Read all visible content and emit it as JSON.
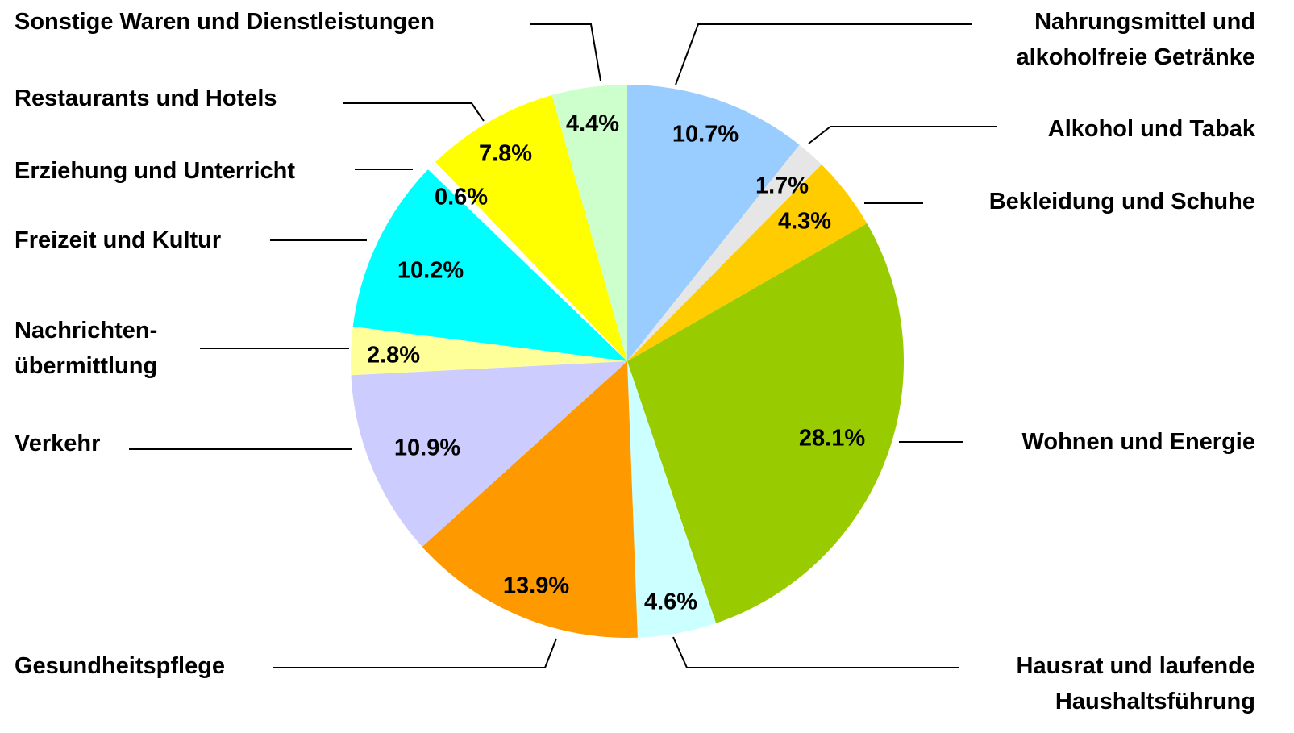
{
  "chart_data": {
    "type": "pie",
    "categories": [
      "Nahrungsmittel und\nalkoholfreie Getränke",
      "Alkohol und Tabak",
      "Bekleidung und Schuhe",
      "Wohnen und Energie",
      "Hausrat und laufende\nHaushaltsführung",
      "Gesundheitspflege",
      "Verkehr",
      "Nachrichten-\nübermittlung",
      "Freizeit und Kultur",
      "Erziehung und Unterricht",
      "Restaurants und Hotels",
      "Sonstige Waren und Dienstleistungen"
    ],
    "values": [
      10.7,
      1.7,
      4.3,
      28.1,
      4.6,
      13.9,
      10.9,
      2.8,
      10.2,
      0.6,
      7.8,
      4.4
    ],
    "value_labels": [
      "10.7%",
      "1.7%",
      "4.3%",
      "28.1%",
      "4.6%",
      "13.9%",
      "10.9%",
      "2.8%",
      "10.2%",
      "0.6%",
      "7.8%",
      "4.4%"
    ],
    "colors": [
      "#99ccff",
      "#e6e6e6",
      "#ffcc00",
      "#99cc00",
      "#ccffff",
      "#ff9900",
      "#ccccff",
      "#ffff99",
      "#00ffff",
      "#ffffff",
      "#ffff00",
      "#ccffcc"
    ]
  }
}
